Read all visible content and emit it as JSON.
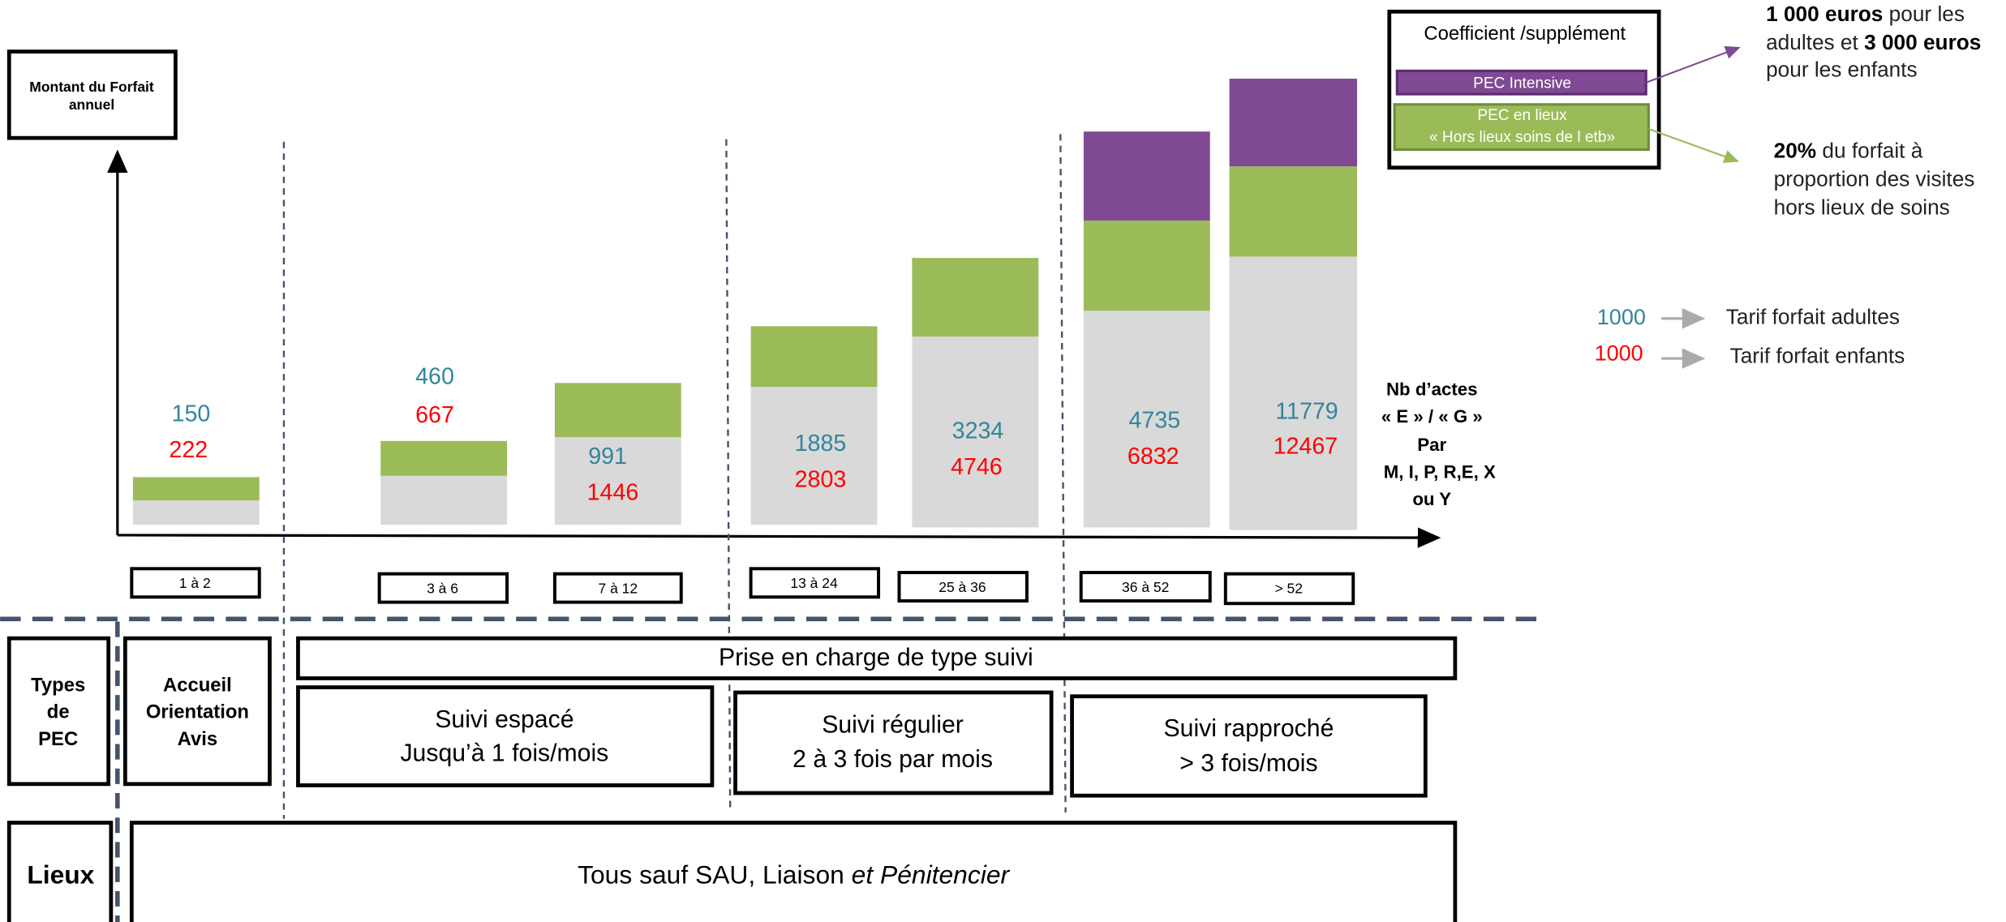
{
  "y_axis_label": [
    "Montant du Forfait",
    "annuel"
  ],
  "x_axis_label": [
    "Nb d’actes",
    "« E » / « G »",
    "Par",
    "M, I, P, R,E, X",
    "ou Y"
  ],
  "groups": [
    {
      "range": "1 à 2",
      "adult": "150",
      "child": "222"
    },
    {
      "range": "3 à 6",
      "adult": "460",
      "child": "667"
    },
    {
      "range": "7 à 12",
      "adult": "991",
      "child": "1446"
    },
    {
      "range": "13 à 24",
      "adult": "1885",
      "child": "2803"
    },
    {
      "range": "25 à 36",
      "adult": "3234",
      "child": "4746"
    },
    {
      "range": "36 à 52",
      "adult": "4735",
      "child": "6832"
    },
    {
      "range": "> 52",
      "adult": "11779",
      "child": "12467"
    }
  ],
  "legend": {
    "title": "Coefficient /supplément",
    "intensive": "PEC Intensive",
    "lieux": [
      "PEC en lieux",
      "« Hors lieux soins de l etb»"
    ]
  },
  "notes": {
    "intensive": [
      [
        "1 000 euros",
        " pour les"
      ],
      [
        "adultes et ",
        "3 000 euros"
      ],
      [
        "pour les enfants"
      ]
    ],
    "lieux": [
      [
        "20%",
        " du forfait à"
      ],
      [
        "proportion des visites"
      ],
      [
        "hors lieux de soins"
      ]
    ]
  },
  "tariffs": [
    {
      "sample": "1000",
      "label": "Tarif forfait adultes"
    },
    {
      "sample": "1000",
      "label": "Tarif forfait enfants"
    }
  ],
  "rows": {
    "types": [
      "Types",
      "de",
      "PEC"
    ],
    "accueil": [
      "Accueil",
      "Orientation",
      "Avis"
    ],
    "suivi": "Prise en charge de type suivi",
    "espace": [
      "Suivi espacé",
      "Jusqu’à 1 fois/mois"
    ],
    "regulier": [
      "Suivi régulier",
      "2 à 3 fois par mois"
    ],
    "rapproche": [
      "Suivi rapproché",
      "> 3 fois/mois"
    ],
    "lieux": "Lieux",
    "tous": [
      "Tous sauf SAU, Liaison ",
      "et Pénitencier"
    ]
  }
}
